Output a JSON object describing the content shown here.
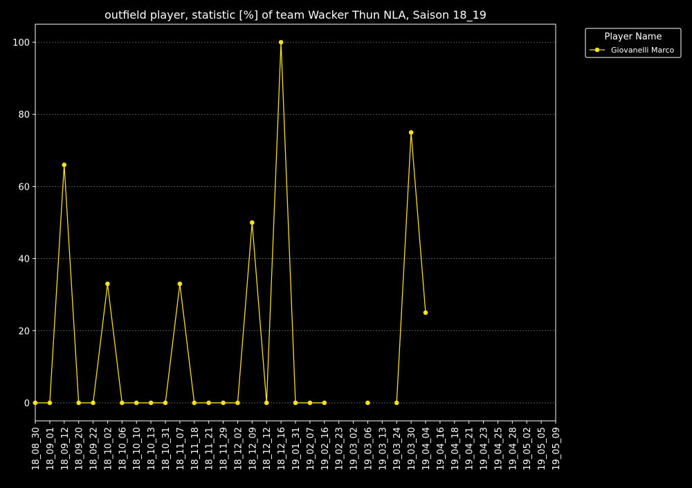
{
  "chart_data": {
    "type": "line",
    "title": "outfield player, statistic [%] of team Wacker Thun NLA, Saison 18_19",
    "xlabel": "",
    "ylabel": "",
    "categories": [
      "18_08_30",
      "18_09_01",
      "18_09_12",
      "18_09_20",
      "18_09_22",
      "18_10_02",
      "18_10_06",
      "18_10_10",
      "18_10_13",
      "18_10_31",
      "18_11_07",
      "18_11_18",
      "18_11_21",
      "18_11_29",
      "18_12_02",
      "18_12_09",
      "18_12_12",
      "18_12_16",
      "19_01_31",
      "19_02_07",
      "19_02_16",
      "19_02_23",
      "19_03_02",
      "19_03_06",
      "19_03_13",
      "19_03_24",
      "19_03_30",
      "19_04_04",
      "19_04_16",
      "19_04_18",
      "19_04_21",
      "19_04_23",
      "19_04_25",
      "19_04_28",
      "19_05_02",
      "19_05_05",
      "19_05_09"
    ],
    "series": [
      {
        "name": "Giovanelli Marco",
        "values": [
          0,
          0,
          66,
          0,
          0,
          33,
          0,
          0,
          0,
          0,
          33,
          0,
          0,
          0,
          0,
          50,
          0,
          100,
          0,
          0,
          0,
          null,
          null,
          0,
          null,
          0,
          75,
          25,
          null,
          null,
          null,
          null,
          null,
          null,
          null,
          null,
          null
        ]
      }
    ],
    "ylim": [
      -5,
      105
    ],
    "yticks": [
      0,
      20,
      40,
      60,
      80,
      100
    ],
    "grid": true,
    "legend": {
      "title": "Player Name",
      "placement": "outside-top-right"
    },
    "colors": {
      "background": "#000000",
      "foreground": "#ffffff",
      "line": "#f7e01d",
      "grid": "#888888"
    }
  }
}
